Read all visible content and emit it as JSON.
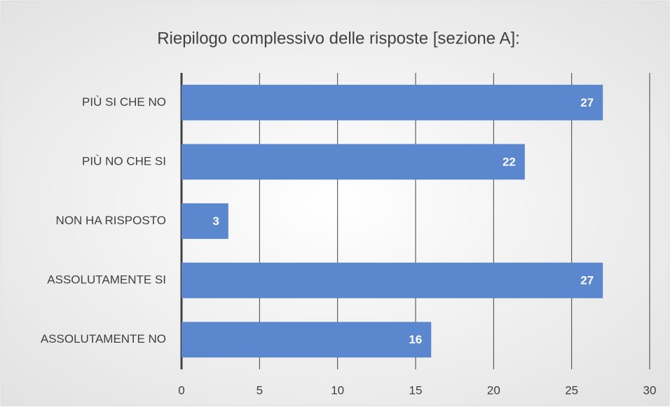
{
  "chart_data": {
    "type": "barh",
    "title": "Riepilogo complessivo delle risposte [sezione A]:",
    "categories": [
      "PIÙ SI CHE NO",
      "PIÙ NO CHE SI",
      "NON HA RISPOSTO",
      "ASSOLUTAMENTE SI",
      "ASSOLUTAMENTE NO"
    ],
    "values": [
      27,
      22,
      3,
      27,
      16
    ],
    "color": "#5b87cf",
    "xlim": [
      0,
      30
    ],
    "xticks": [
      0,
      5,
      10,
      15,
      20,
      25,
      30
    ],
    "grid": true
  }
}
